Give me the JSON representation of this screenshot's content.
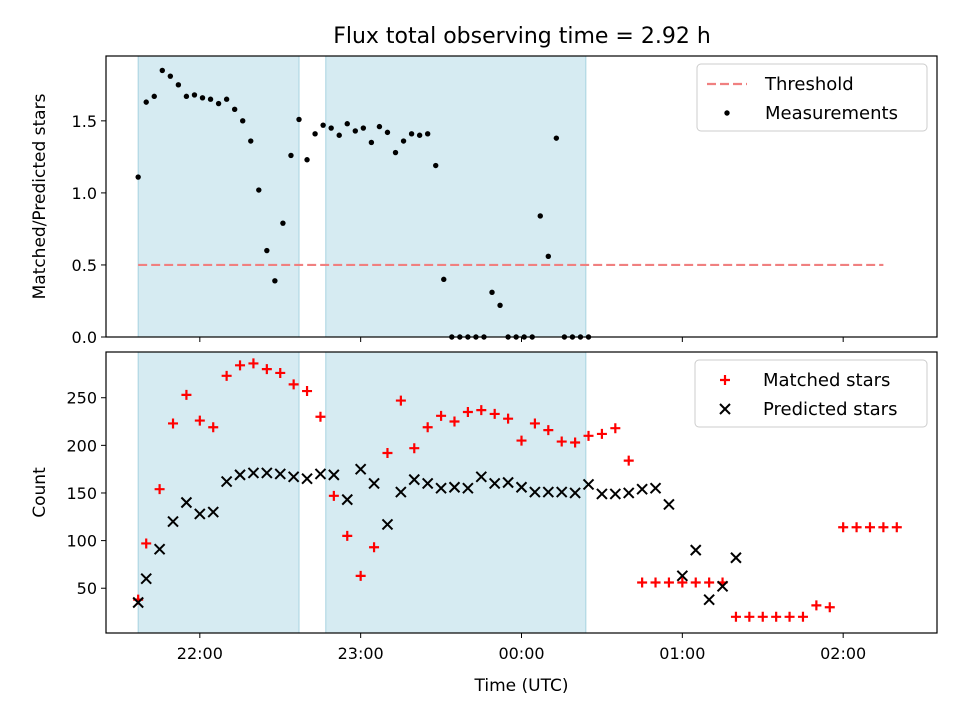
{
  "title": "Flux total observing time = 2.92 h",
  "chart_data": [
    {
      "type": "scatter",
      "ylabel": "Matched/Predicted stars",
      "ylim": [
        0,
        1.95
      ],
      "yticks": [
        0.0,
        0.5,
        1.0,
        1.5
      ],
      "ytick_labels": [
        "0.0",
        "0.5",
        "1.0",
        "1.5"
      ],
      "xlim": [
        "21:25",
        "02:35"
      ],
      "xticks": [
        "22:00",
        "23:00",
        "00:00",
        "01:00",
        "02:00"
      ],
      "show_xtick_labels": false,
      "shaded_intervals": [
        [
          "21:37",
          "22:37"
        ],
        [
          "22:47",
          "00:24"
        ]
      ],
      "threshold": {
        "name": "Threshold",
        "value": 0.5,
        "x_range": [
          "21:37",
          "02:15"
        ],
        "color": "#f08080",
        "style": "dashed"
      },
      "legend": {
        "position": "upper right",
        "entries": [
          "Threshold",
          "Measurements"
        ]
      },
      "series": [
        {
          "name": "Measurements",
          "marker": "dot",
          "color": "#000000",
          "points": [
            [
              "21:37",
              1.11
            ],
            [
              "21:40",
              1.63
            ],
            [
              "21:43",
              1.67
            ],
            [
              "21:46",
              1.85
            ],
            [
              "21:49",
              1.81
            ],
            [
              "21:52",
              1.75
            ],
            [
              "21:55",
              1.67
            ],
            [
              "21:58",
              1.68
            ],
            [
              "22:01",
              1.66
            ],
            [
              "22:04",
              1.65
            ],
            [
              "22:07",
              1.62
            ],
            [
              "22:10",
              1.65
            ],
            [
              "22:13",
              1.58
            ],
            [
              "22:16",
              1.5
            ],
            [
              "22:19",
              1.36
            ],
            [
              "22:22",
              1.02
            ],
            [
              "22:25",
              0.6
            ],
            [
              "22:28",
              0.39
            ],
            [
              "22:31",
              0.79
            ],
            [
              "22:34",
              1.26
            ],
            [
              "22:37",
              1.51
            ],
            [
              "22:40",
              1.23
            ],
            [
              "22:43",
              1.41
            ],
            [
              "22:46",
              1.47
            ],
            [
              "22:49",
              1.45
            ],
            [
              "22:52",
              1.4
            ],
            [
              "22:55",
              1.48
            ],
            [
              "22:58",
              1.43
            ],
            [
              "23:01",
              1.45
            ],
            [
              "23:04",
              1.35
            ],
            [
              "23:07",
              1.46
            ],
            [
              "23:10",
              1.42
            ],
            [
              "23:13",
              1.28
            ],
            [
              "23:16",
              1.36
            ],
            [
              "23:19",
              1.41
            ],
            [
              "23:22",
              1.4
            ],
            [
              "23:25",
              1.41
            ],
            [
              "23:28",
              1.19
            ],
            [
              "23:31",
              0.4
            ],
            [
              "23:34",
              0.0
            ],
            [
              "23:37",
              0.0
            ],
            [
              "23:40",
              0.0
            ],
            [
              "23:43",
              0.0
            ],
            [
              "23:46",
              0.0
            ],
            [
              "23:49",
              0.31
            ],
            [
              "23:52",
              0.22
            ],
            [
              "23:55",
              0.0
            ],
            [
              "23:58",
              0.0
            ],
            [
              "00:01",
              0.0
            ],
            [
              "00:04",
              0.0
            ],
            [
              "00:07",
              0.84
            ],
            [
              "00:10",
              0.56
            ],
            [
              "00:13",
              1.38
            ],
            [
              "00:16",
              0.0
            ],
            [
              "00:19",
              0.0
            ],
            [
              "00:22",
              0.0
            ],
            [
              "00:25",
              0.0
            ]
          ]
        }
      ]
    },
    {
      "type": "scatter",
      "xlabel": "Time (UTC)",
      "ylabel": "Count",
      "ylim": [
        3,
        298
      ],
      "yticks": [
        50,
        100,
        150,
        200,
        250
      ],
      "ytick_labels": [
        "50",
        "100",
        "150",
        "200",
        "250"
      ],
      "xlim": [
        "21:25",
        "02:35"
      ],
      "xticks": [
        "22:00",
        "23:00",
        "00:00",
        "01:00",
        "02:00"
      ],
      "xtick_labels": [
        "22:00",
        "23:00",
        "00:00",
        "01:00",
        "02:00"
      ],
      "shaded_intervals": [
        [
          "21:37",
          "22:37"
        ],
        [
          "22:47",
          "00:24"
        ]
      ],
      "legend": {
        "position": "upper right",
        "entries": [
          "Matched stars",
          "Predicted stars"
        ]
      },
      "series": [
        {
          "name": "Matched stars",
          "marker": "plus",
          "color": "#ff0000",
          "points": [
            [
              "21:37",
              38
            ],
            [
              "21:40",
              97
            ],
            [
              "21:45",
              154
            ],
            [
              "21:50",
              223
            ],
            [
              "21:55",
              253
            ],
            [
              "22:00",
              226
            ],
            [
              "22:05",
              219
            ],
            [
              "22:10",
              273
            ],
            [
              "22:15",
              284
            ],
            [
              "22:20",
              286
            ],
            [
              "22:25",
              280
            ],
            [
              "22:30",
              276
            ],
            [
              "22:35",
              264
            ],
            [
              "22:40",
              257
            ],
            [
              "22:45",
              230
            ],
            [
              "22:50",
              147
            ],
            [
              "22:55",
              105
            ],
            [
              "23:00",
              63
            ],
            [
              "23:05",
              93
            ],
            [
              "23:10",
              192
            ],
            [
              "23:15",
              247
            ],
            [
              "23:20",
              197
            ],
            [
              "23:25",
              219
            ],
            [
              "23:30",
              231
            ],
            [
              "23:35",
              225
            ],
            [
              "23:40",
              235
            ],
            [
              "23:45",
              237
            ],
            [
              "23:50",
              233
            ],
            [
              "23:55",
              228
            ],
            [
              "00:00",
              205
            ],
            [
              "00:05",
              223
            ],
            [
              "00:10",
              216
            ],
            [
              "00:15",
              204
            ],
            [
              "00:20",
              203
            ],
            [
              "00:25",
              210
            ],
            [
              "00:30",
              212
            ],
            [
              "00:35",
              218
            ],
            [
              "00:40",
              184
            ],
            [
              "00:45",
              56
            ],
            [
              "00:50",
              56
            ],
            [
              "00:55",
              56
            ],
            [
              "01:00",
              56
            ],
            [
              "01:05",
              56
            ],
            [
              "01:10",
              56
            ],
            [
              "01:15",
              56
            ],
            [
              "01:20",
              20
            ],
            [
              "01:25",
              20
            ],
            [
              "01:30",
              20
            ],
            [
              "01:35",
              20
            ],
            [
              "01:40",
              20
            ],
            [
              "01:45",
              20
            ],
            [
              "01:50",
              32
            ],
            [
              "01:55",
              30
            ],
            [
              "02:00",
              114
            ],
            [
              "02:05",
              114
            ],
            [
              "02:10",
              114
            ],
            [
              "02:15",
              114
            ],
            [
              "02:20",
              114
            ]
          ]
        },
        {
          "name": "Predicted stars",
          "marker": "x",
          "color": "#000000",
          "points": [
            [
              "21:37",
              35
            ],
            [
              "21:40",
              60
            ],
            [
              "21:45",
              91
            ],
            [
              "21:50",
              120
            ],
            [
              "21:55",
              140
            ],
            [
              "22:00",
              128
            ],
            [
              "22:05",
              130
            ],
            [
              "22:10",
              162
            ],
            [
              "22:15",
              169
            ],
            [
              "22:20",
              171
            ],
            [
              "22:25",
              171
            ],
            [
              "22:30",
              170
            ],
            [
              "22:35",
              167
            ],
            [
              "22:40",
              165
            ],
            [
              "22:45",
              170
            ],
            [
              "22:50",
              169
            ],
            [
              "22:55",
              143
            ],
            [
              "23:00",
              175
            ],
            [
              "23:05",
              160
            ],
            [
              "23:10",
              117
            ],
            [
              "23:15",
              151
            ],
            [
              "23:20",
              164
            ],
            [
              "23:25",
              160
            ],
            [
              "23:30",
              155
            ],
            [
              "23:35",
              156
            ],
            [
              "23:40",
              155
            ],
            [
              "23:45",
              167
            ],
            [
              "23:50",
              160
            ],
            [
              "23:55",
              161
            ],
            [
              "00:00",
              156
            ],
            [
              "00:05",
              151
            ],
            [
              "00:10",
              151
            ],
            [
              "00:15",
              151
            ],
            [
              "00:20",
              150
            ],
            [
              "00:25",
              159
            ],
            [
              "00:30",
              149
            ],
            [
              "00:35",
              149
            ],
            [
              "00:40",
              150
            ],
            [
              "00:45",
              154
            ],
            [
              "00:50",
              155
            ],
            [
              "00:55",
              138
            ],
            [
              "01:00",
              63
            ],
            [
              "01:05",
              90
            ],
            [
              "01:10",
              38
            ],
            [
              "01:15",
              52
            ],
            [
              "01:20",
              82
            ]
          ]
        }
      ]
    }
  ]
}
